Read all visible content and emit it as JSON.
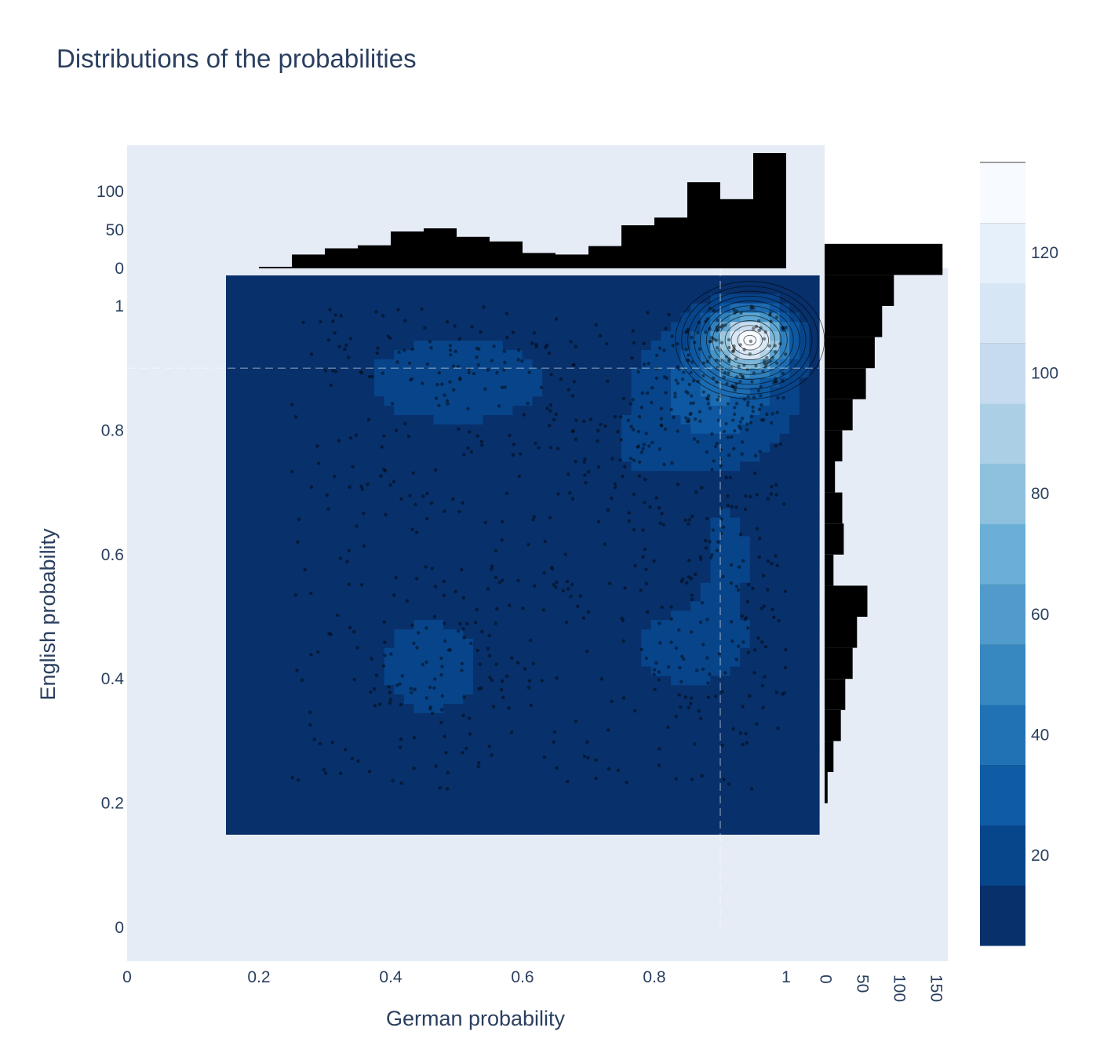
{
  "title": "Distributions of the probabilities",
  "colors": {
    "plot_bg": "#e5ecf6",
    "hist": "#000000",
    "points": "#000000",
    "guide_line": "#ffffff",
    "colorscale": [
      "#08306b",
      "#08519c",
      "#2171b5",
      "#4292c6",
      "#6baed6",
      "#9ecae1",
      "#c6dbef",
      "#deebf7",
      "#f7fbff"
    ]
  },
  "chart_data": [
    {
      "type": "contour",
      "name": "main",
      "xlabel": "German probability",
      "ylabel": "English probability",
      "xlim": [
        0,
        1.0
      ],
      "ylim": [
        -0.05,
        1.05
      ],
      "xticks": [
        "0",
        "0.2",
        "0.4",
        "0.6",
        "0.8",
        "1"
      ],
      "xtick_values": [
        0,
        0.2,
        0.4,
        0.6,
        0.8,
        1.0
      ],
      "yticks": [
        "0",
        "0.2",
        "0.4",
        "0.6",
        "0.8",
        "1"
      ],
      "ytick_values": [
        0,
        0.2,
        0.4,
        0.6,
        0.8,
        1.0
      ],
      "heat_region": {
        "x": [
          0.15,
          1.05
        ],
        "y": [
          0.15,
          1.05
        ]
      },
      "guide_lines": {
        "x": 0.9,
        "y": 0.9
      },
      "kde_peaks": [
        {
          "x": 0.945,
          "y": 0.945,
          "amp": 125,
          "sx": 0.035,
          "sy": 0.03
        },
        {
          "x": 0.9,
          "y": 0.87,
          "amp": 28,
          "sx": 0.07,
          "sy": 0.07
        },
        {
          "x": 0.5,
          "y": 0.88,
          "amp": 11,
          "sx": 0.12,
          "sy": 0.06
        },
        {
          "x": 0.46,
          "y": 0.42,
          "amp": 10,
          "sx": 0.07,
          "sy": 0.07
        },
        {
          "x": 0.85,
          "y": 0.45,
          "amp": 11,
          "sx": 0.07,
          "sy": 0.05
        },
        {
          "x": 0.91,
          "y": 0.6,
          "amp": 8,
          "sx": 0.04,
          "sy": 0.08
        },
        {
          "x": 0.78,
          "y": 0.76,
          "amp": 6,
          "sx": 0.05,
          "sy": 0.05
        }
      ]
    },
    {
      "type": "bar",
      "name": "German probability histogram",
      "orientation": "vertical",
      "bin_start": 0.2,
      "bin_width": 0.05,
      "values": [
        2,
        18,
        26,
        30,
        48,
        52,
        41,
        35,
        20,
        18,
        29,
        56,
        66,
        112,
        90,
        150
      ],
      "yticks": [
        "0",
        "50",
        "100"
      ],
      "ytick_values": [
        0,
        50,
        100
      ],
      "ylim": [
        0,
        150
      ]
    },
    {
      "type": "bar",
      "name": "English probability histogram",
      "orientation": "horizontal",
      "bin_start": 0.2,
      "bin_width": 0.05,
      "values": [
        4,
        12,
        22,
        28,
        38,
        44,
        58,
        12,
        26,
        24,
        14,
        24,
        38,
        56,
        68,
        78,
        94,
        160
      ],
      "xticks": [
        "0",
        "50",
        "100",
        "150"
      ],
      "xtick_values": [
        0,
        50,
        100,
        150
      ],
      "xlim": [
        0,
        165
      ]
    },
    {
      "type": "colorbar",
      "ticks": [
        "20",
        "40",
        "60",
        "80",
        "100",
        "120"
      ],
      "tick_values": [
        20,
        40,
        60,
        80,
        100,
        120
      ],
      "range": [
        5,
        135
      ]
    }
  ]
}
